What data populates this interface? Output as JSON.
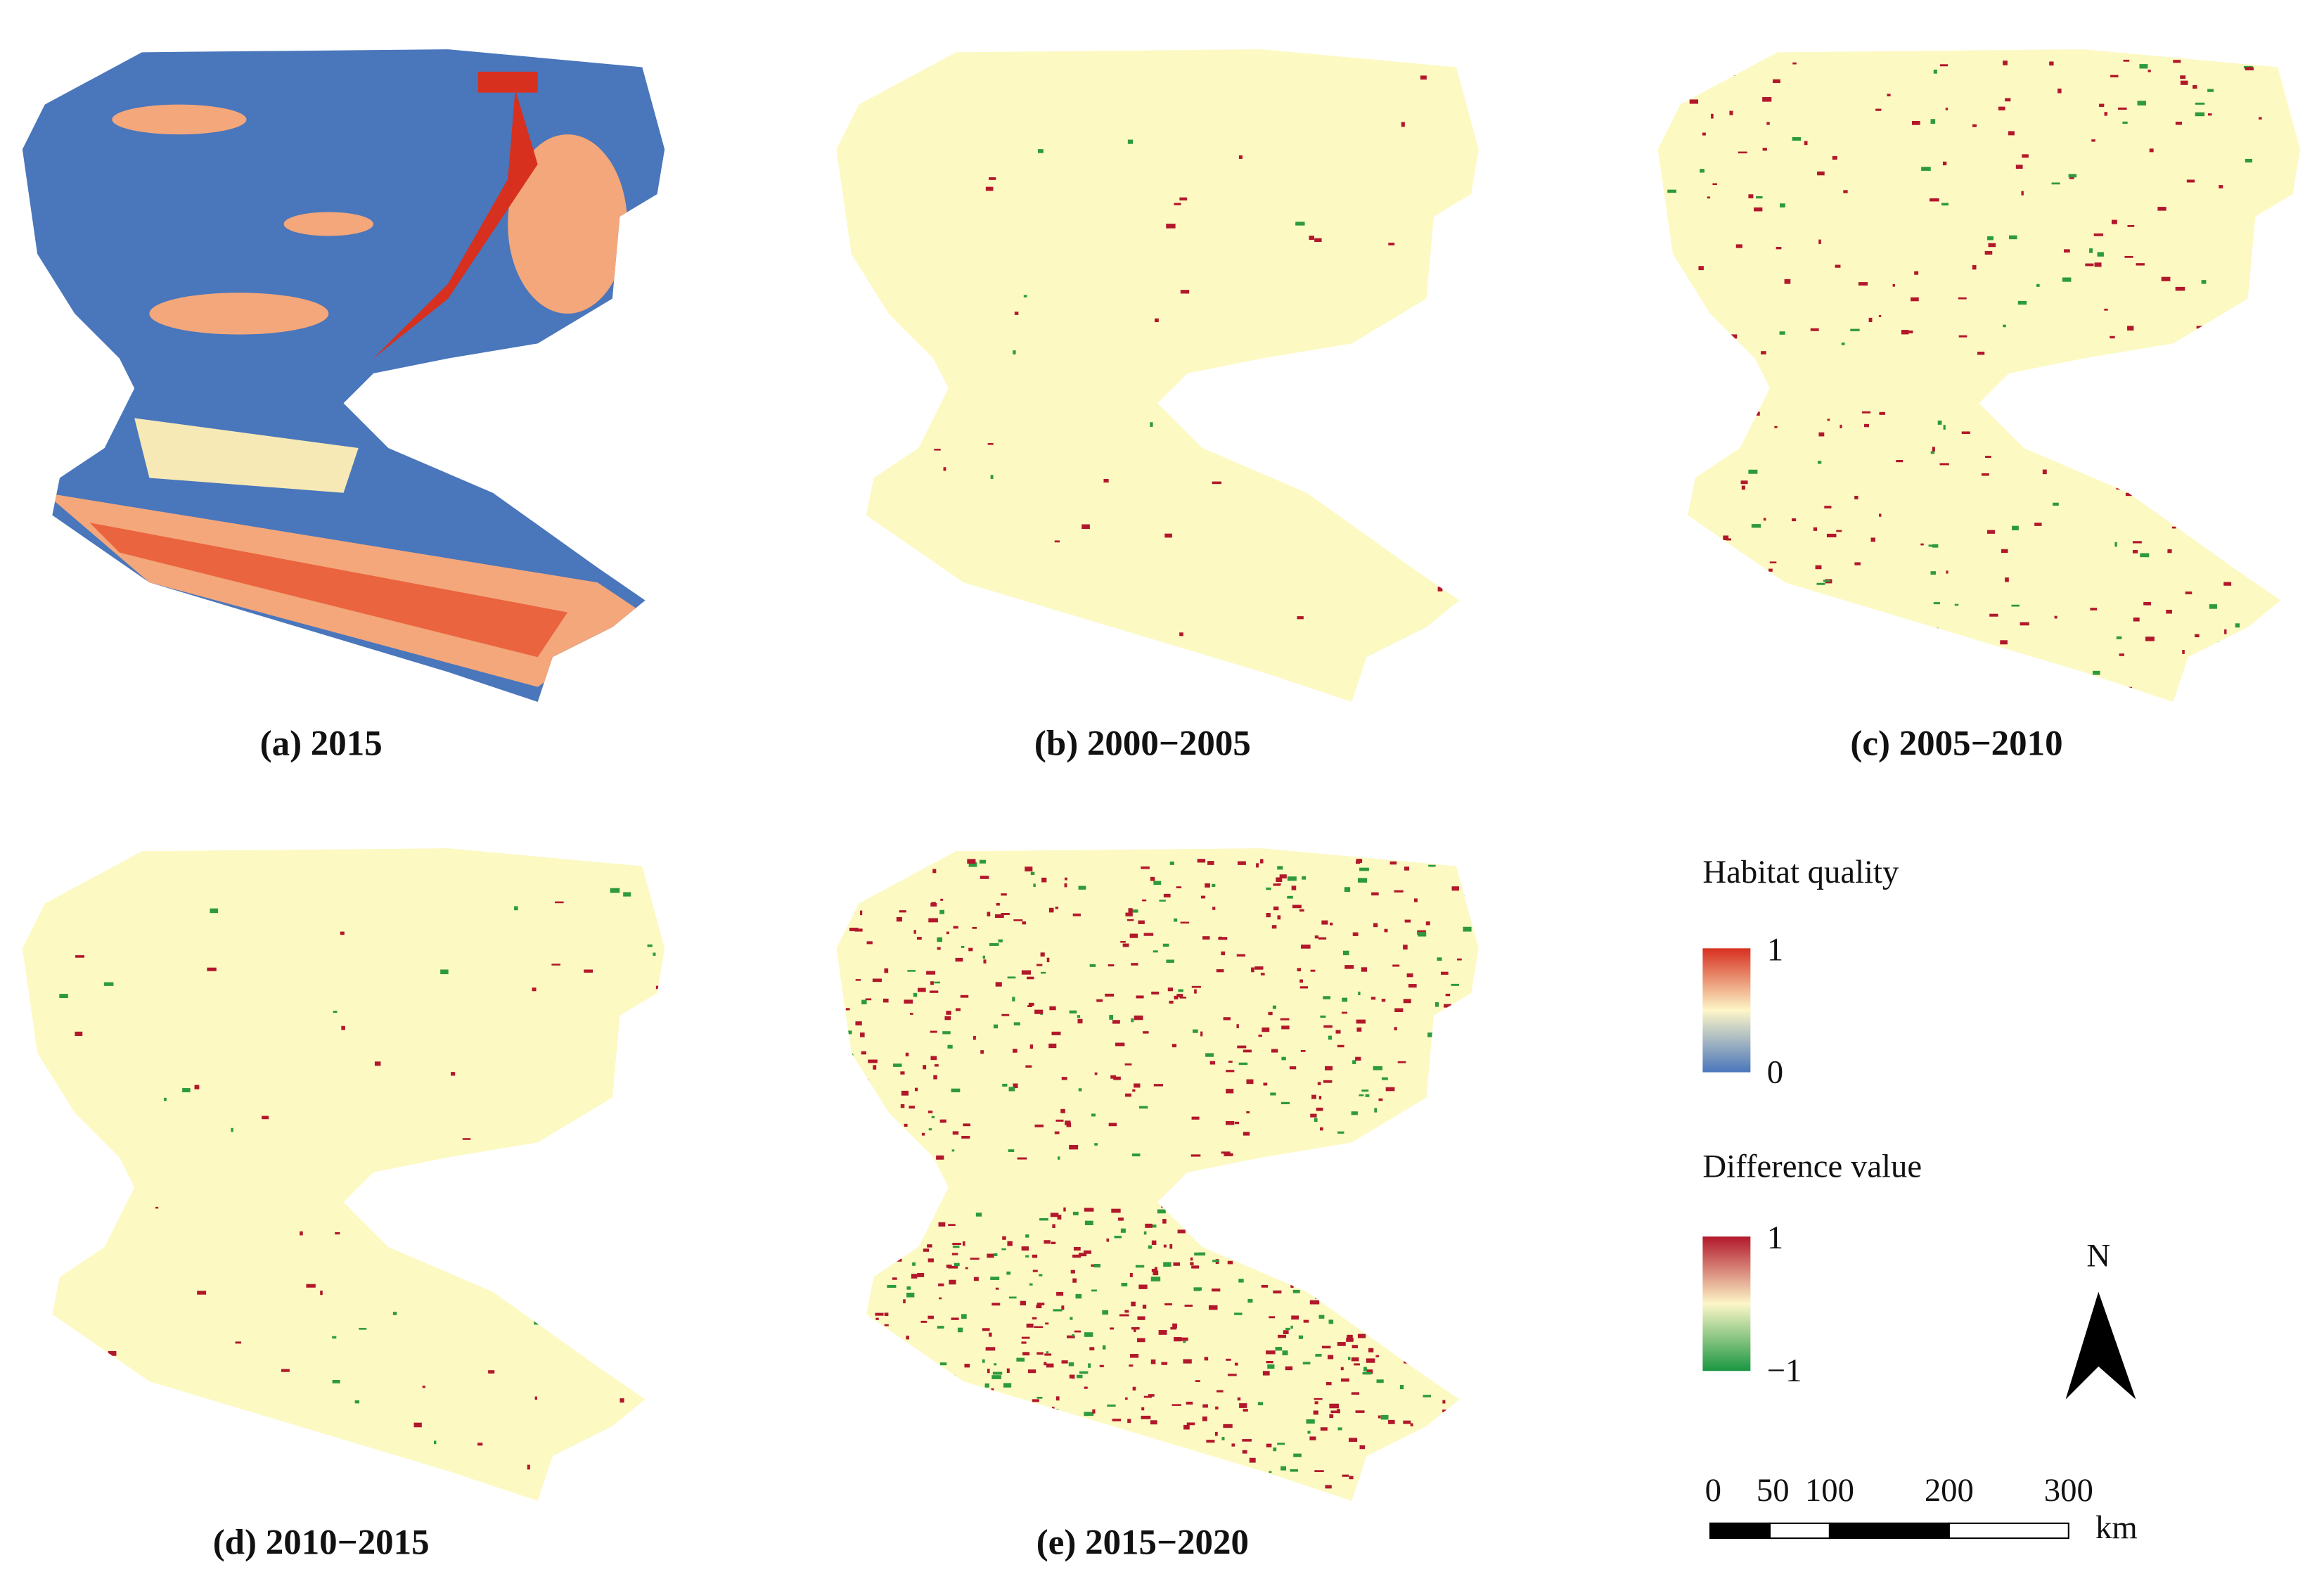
{
  "panels": [
    {
      "caption": "(a) 2015"
    },
    {
      "caption": "(b) 2000−2005"
    },
    {
      "caption": "(c) 2005−2010"
    },
    {
      "caption": "(d) 2010−2015"
    },
    {
      "caption": "(e) 2015−2020"
    }
  ],
  "legend": {
    "habitat_title": "Habitat quality",
    "habitat_max": "1",
    "habitat_min": "0",
    "difference_title": "Difference value",
    "difference_max": "1",
    "difference_min": "−1"
  },
  "north_arrow": {
    "label": "N"
  },
  "scale_bar": {
    "labels": [
      "0",
      "50",
      "100",
      "200",
      "300"
    ],
    "unit": "km"
  }
}
